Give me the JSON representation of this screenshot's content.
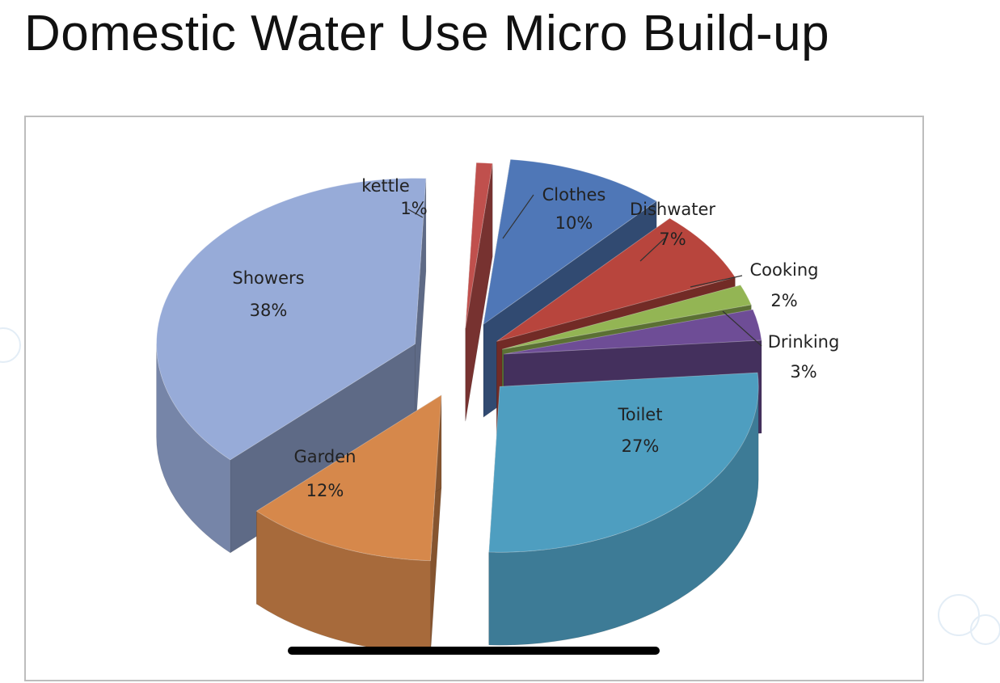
{
  "slide": {
    "title": "Domestic Water Use Micro Build-up"
  },
  "chart_data": {
    "type": "pie",
    "title": "",
    "exploded": true,
    "three_d": true,
    "legend": "none",
    "slices": [
      {
        "name": "Clothes",
        "value": 10,
        "label": "10%",
        "color": "#4f77b7"
      },
      {
        "name": "Dishwater",
        "value": 7,
        "label": "7%",
        "color": "#b8453d"
      },
      {
        "name": "Cooking",
        "value": 2,
        "label": "2%",
        "color": "#93b554"
      },
      {
        "name": "Drinking",
        "value": 3,
        "label": "3%",
        "color": "#6e4d96"
      },
      {
        "name": "Toilet",
        "value": 27,
        "label": "27%",
        "color": "#4e9ec0"
      },
      {
        "name": "Garden",
        "value": 12,
        "label": "12%",
        "color": "#d6884b"
      },
      {
        "name": "Showers",
        "value": 38,
        "label": "38%",
        "color": "#97abd8"
      },
      {
        "name": "kettle",
        "value": 1,
        "label": "1%",
        "color": "#c0504d"
      }
    ]
  }
}
